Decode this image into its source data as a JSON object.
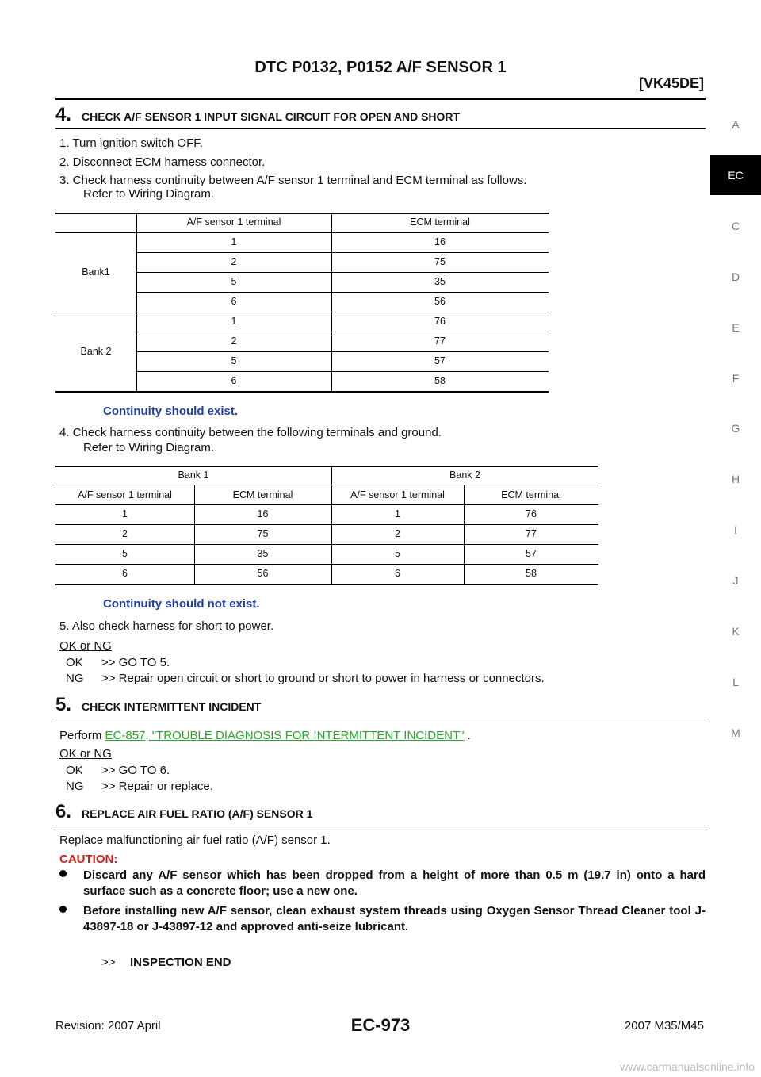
{
  "header": {
    "title": "DTC P0132, P0152 A/F SENSOR 1",
    "model": "[VK45DE]"
  },
  "side_tabs": [
    {
      "label": "A"
    },
    {
      "label": "EC",
      "active": true
    },
    {
      "label": "C"
    },
    {
      "label": "D"
    },
    {
      "label": "E"
    },
    {
      "label": "F"
    },
    {
      "label": "G"
    },
    {
      "label": "H"
    },
    {
      "label": "I"
    },
    {
      "label": "J"
    },
    {
      "label": "K"
    },
    {
      "label": "L"
    },
    {
      "label": "M"
    }
  ],
  "steps": [
    {
      "number": "4.",
      "heading": "CHECK A/F SENSOR 1 INPUT SIGNAL CIRCUIT FOR OPEN AND SHORT",
      "items": [
        [
          "1. Turn ignition switch OFF."
        ],
        [
          "2. Disconnect ECM harness connector."
        ],
        [
          "3. Check harness continuity between A/F sensor 1 terminal and ECM terminal as follows.",
          "Refer to Wiring Diagram."
        ]
      ],
      "table1": {
        "columns": [
          "A/F sensor 1 terminal",
          "ECM terminal"
        ],
        "groups": [
          {
            "label": "Bank1",
            "rows": [
              [
                1,
                16
              ],
              [
                2,
                75
              ],
              [
                5,
                35
              ],
              [
                6,
                56
              ]
            ]
          },
          {
            "label": "Bank 2",
            "rows": [
              [
                1,
                76
              ],
              [
                2,
                77
              ],
              [
                5,
                57
              ],
              [
                6,
                58
              ]
            ]
          }
        ]
      },
      "note1": "Continuity should exist.",
      "item4": [
        "4. Check harness continuity between the following terminals and ground.",
        "Refer to Wiring Diagram."
      ],
      "table2": {
        "groups": [
          "Bank 1",
          "Bank 2"
        ],
        "columns": [
          "A/F sensor 1 terminal",
          "ECM terminal",
          "A/F sensor 1 terminal",
          "ECM terminal"
        ],
        "rows": [
          [
            1,
            16,
            1,
            76
          ],
          [
            2,
            75,
            2,
            77
          ],
          [
            5,
            35,
            5,
            57
          ],
          [
            6,
            56,
            6,
            58
          ]
        ]
      },
      "note2": "Continuity should not exist.",
      "item5": "5. Also check harness for short to power.",
      "judgement": "OK or NG",
      "results": [
        {
          "code": "OK",
          "action": ">> GO TO 5."
        },
        {
          "code": "NG",
          "action": ">> Repair open circuit or short to ground or short to power in harness or connectors."
        }
      ]
    },
    {
      "number": "5.",
      "heading": "CHECK INTERMITTENT INCIDENT",
      "text": "Perform",
      "link": "EC-857, \"TROUBLE DIAGNOSIS FOR INTERMITTENT INCIDENT\"",
      "text_end": ".",
      "judgement": "OK or NG",
      "results": [
        {
          "code": "OK",
          "action": ">> GO TO 6."
        },
        {
          "code": "NG",
          "action": ">> Repair or replace."
        }
      ]
    },
    {
      "number": "6.",
      "heading": "REPLACE AIR FUEL RATIO (A/F) SENSOR 1",
      "text": "Replace malfunctioning air fuel ratio (A/F) sensor 1.",
      "caution": {
        "label": "CAUTION:",
        "bullets": [
          "Discard any A/F sensor which has been dropped from a height of more than 0.5 m (19.7 in) onto a hard surface such as a concrete floor; use a new one.",
          "Before installing new A/F sensor, clean exhaust system threads using Oxygen Sensor Thread Cleaner tool J-43897-18 or J-43897-12 and approved anti-seize lubricant."
        ]
      },
      "end": {
        "marker": ">>",
        "text": "INSPECTION END"
      }
    }
  ],
  "footer": {
    "revision": "Revision: 2007 April",
    "page": "EC-973",
    "model": "2007 M35/M45"
  },
  "watermark": "www.carmanualsonline.info"
}
